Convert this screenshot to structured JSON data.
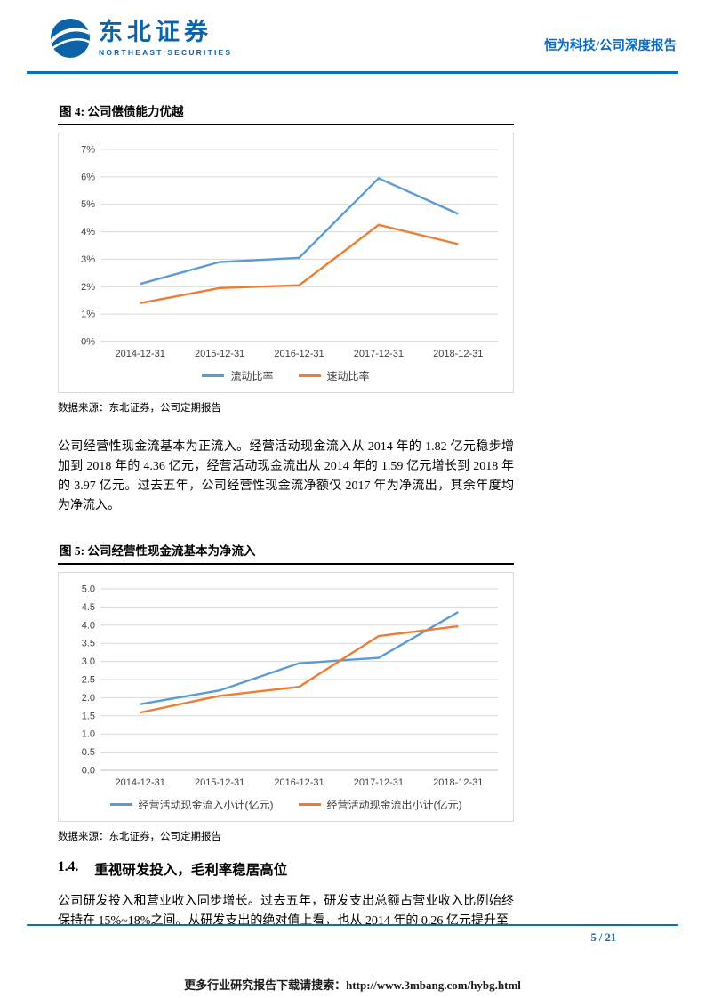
{
  "header": {
    "brand_cn": "东北证券",
    "brand_en": "NORTHEAST SECURITIES",
    "report_label": "恒为科技/公司深度报告"
  },
  "figures": [
    {
      "title": "图 4: 公司偿债能力优越",
      "source": "数据来源：东北证券，公司定期报告"
    },
    {
      "title": "图 5: 公司经营性现金流基本为净流入",
      "source": "数据来源：东北证券，公司定期报告"
    }
  ],
  "paragraphs": [
    "公司经营性现金流基本为正流入。经营活动现金流入从 2014 年的 1.82 亿元稳步增加到 2018 年的 4.36 亿元，经营活动现金流出从 2014 年的 1.59 亿元增长到 2018 年的 3.97 亿元。过去五年，公司经营性现金流净额仅 2017 年为净流出，其余年度均为净流入。",
    "公司研发投入和营业收入同步增长。过去五年，研发支出总额占营业收入比例始终保持在 15%~18%之间。从研发支出的绝对值上看，也从 2014 年的 0.26 亿元提升至"
  ],
  "section_heading": {
    "number": "1.4.",
    "title": "重视研发投入，毛利率稳居高位"
  },
  "footer": {
    "page_number": "5 / 21",
    "watermark": "更多行业研究报告下载请搜索：http://www.3mbang.com/hybg.html"
  },
  "colors": {
    "accent_blue": "#0a6bc0",
    "logo_blue": "#0e63a8",
    "series_blue": "#5B9BD5",
    "series_orange": "#ED7D31"
  },
  "icons": {
    "logo": "northeast-securities-globe-swoosh-icon"
  },
  "chart_data": [
    {
      "type": "line",
      "title": "图 4: 公司偿债能力优越",
      "categories": [
        "2014-12-31",
        "2015-12-31",
        "2016-12-31",
        "2017-12-31",
        "2018-12-31"
      ],
      "series": [
        {
          "name": "流动比率",
          "color": "#5B9BD5",
          "values": [
            2.1,
            2.9,
            3.05,
            5.95,
            4.65
          ]
        },
        {
          "name": "速动比率",
          "color": "#ED7D31",
          "values": [
            1.4,
            1.95,
            2.05,
            4.25,
            3.55
          ]
        }
      ],
      "ylim": [
        0,
        7
      ],
      "ytick_step": 1,
      "ytick_format": "percent",
      "xlabel": "",
      "ylabel": "",
      "grid": true,
      "legend_position": "bottom"
    },
    {
      "type": "line",
      "title": "图 5: 公司经营性现金流基本为净流入",
      "categories": [
        "2014-12-31",
        "2015-12-31",
        "2016-12-31",
        "2017-12-31",
        "2018-12-31"
      ],
      "series": [
        {
          "name": "经营活动现金流入小计(亿元)",
          "color": "#5B9BD5",
          "values": [
            1.82,
            2.2,
            2.95,
            3.1,
            4.36
          ]
        },
        {
          "name": "经营活动现金流出小计(亿元)",
          "color": "#ED7D31",
          "values": [
            1.59,
            2.05,
            2.3,
            3.7,
            3.97
          ]
        }
      ],
      "ylim": [
        0,
        5
      ],
      "ytick_step": 0.5,
      "ytick_format": "decimal1",
      "xlabel": "",
      "ylabel": "",
      "grid": true,
      "legend_position": "bottom"
    }
  ]
}
